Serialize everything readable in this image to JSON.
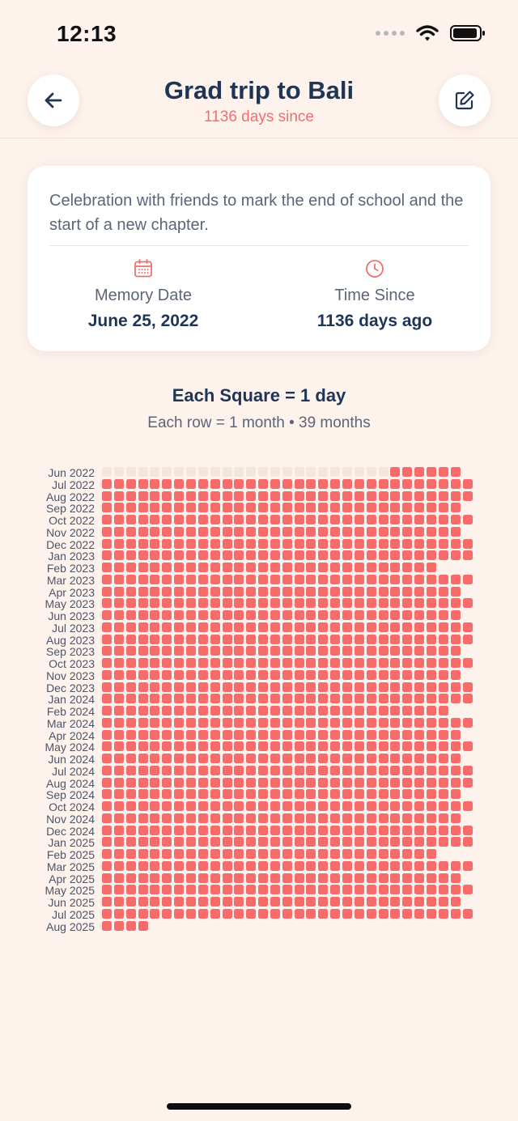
{
  "status": {
    "time": "12:13"
  },
  "header": {
    "title": "Grad trip to Bali",
    "subtitle": "1136 days since"
  },
  "card": {
    "description": "Celebration with friends to mark the end of school and the start of a new chapter.",
    "memory_label": "Memory Date",
    "memory_value": "June 25, 2022",
    "since_label": "Time Since",
    "since_value": "1136 days ago"
  },
  "grid": {
    "title": "Each Square = 1 day",
    "subtitle": "Each row = 1 month • 39 months",
    "colors": {
      "past": "#f76b6b",
      "future": "#f3e6db"
    },
    "rows": [
      {
        "label": "Jun 2022",
        "days": 30,
        "past_from": 25
      },
      {
        "label": "Jul 2022",
        "days": 31
      },
      {
        "label": "Aug 2022",
        "days": 31
      },
      {
        "label": "Sep 2022",
        "days": 30
      },
      {
        "label": "Oct 2022",
        "days": 31
      },
      {
        "label": "Nov 2022",
        "days": 30
      },
      {
        "label": "Dec 2022",
        "days": 31
      },
      {
        "label": "Jan 2023",
        "days": 31
      },
      {
        "label": "Feb 2023",
        "days": 28
      },
      {
        "label": "Mar 2023",
        "days": 31
      },
      {
        "label": "Apr 2023",
        "days": 30
      },
      {
        "label": "May 2023",
        "days": 31
      },
      {
        "label": "Jun 2023",
        "days": 30
      },
      {
        "label": "Jul 2023",
        "days": 31
      },
      {
        "label": "Aug 2023",
        "days": 31
      },
      {
        "label": "Sep 2023",
        "days": 30
      },
      {
        "label": "Oct 2023",
        "days": 31
      },
      {
        "label": "Nov 2023",
        "days": 30
      },
      {
        "label": "Dec 2023",
        "days": 31
      },
      {
        "label": "Jan 2024",
        "days": 31
      },
      {
        "label": "Feb 2024",
        "days": 29
      },
      {
        "label": "Mar 2024",
        "days": 31
      },
      {
        "label": "Apr 2024",
        "days": 30
      },
      {
        "label": "May 2024",
        "days": 31
      },
      {
        "label": "Jun 2024",
        "days": 30
      },
      {
        "label": "Jul 2024",
        "days": 31
      },
      {
        "label": "Aug 2024",
        "days": 31
      },
      {
        "label": "Sep 2024",
        "days": 30
      },
      {
        "label": "Oct 2024",
        "days": 31
      },
      {
        "label": "Nov 2024",
        "days": 30
      },
      {
        "label": "Dec 2024",
        "days": 31
      },
      {
        "label": "Jan 2025",
        "days": 31
      },
      {
        "label": "Feb 2025",
        "days": 28
      },
      {
        "label": "Mar 2025",
        "days": 31
      },
      {
        "label": "Apr 2025",
        "days": 30
      },
      {
        "label": "May 2025",
        "days": 31
      },
      {
        "label": "Jun 2025",
        "days": 30
      },
      {
        "label": "Jul 2025",
        "days": 31
      },
      {
        "label": "Aug 2025",
        "days": 4
      }
    ]
  }
}
